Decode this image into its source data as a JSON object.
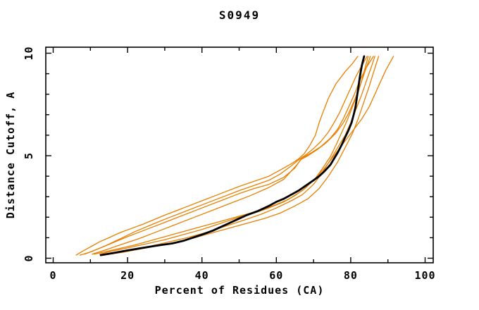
{
  "page": {
    "background_color": "#ffffff",
    "foreground_color": "#000000"
  },
  "chart_data": {
    "type": "line",
    "title": "S0949",
    "xlabel": "Percent of Residues (CA)",
    "ylabel": "Distance Cutoff, A",
    "xlim": [
      0,
      100
    ],
    "ylim": [
      0,
      10
    ],
    "grid": false,
    "legend": "none",
    "frame": "closed box with inward mirrored ticks",
    "x_major_ticks": [
      0,
      20,
      40,
      60,
      80,
      100
    ],
    "x_minor_ticks": [
      10,
      30,
      50,
      70,
      90
    ],
    "x_tick_labels": [
      "0",
      "20",
      "40",
      "60",
      "80",
      "100"
    ],
    "y_major_ticks": [
      0,
      5,
      10
    ],
    "y_minor_ticks": [
      1,
      2,
      3,
      4,
      6,
      7,
      8,
      9
    ],
    "y_tick_labels": [
      "0",
      "5",
      "10"
    ],
    "colors": {
      "model_lines": "#e87f00",
      "reference_line": "#000000"
    },
    "series": [
      {
        "name": "reference-thick-black",
        "color": "#000000",
        "width": 2.8,
        "points": [
          [
            12.8,
            0.15
          ],
          [
            16,
            0.25
          ],
          [
            20,
            0.38
          ],
          [
            24,
            0.5
          ],
          [
            28,
            0.62
          ],
          [
            32,
            0.72
          ],
          [
            35,
            0.85
          ],
          [
            37.5,
            1.0
          ],
          [
            40,
            1.15
          ],
          [
            43,
            1.35
          ],
          [
            46,
            1.6
          ],
          [
            49,
            1.85
          ],
          [
            52,
            2.1
          ],
          [
            55,
            2.3
          ],
          [
            58,
            2.55
          ],
          [
            60,
            2.75
          ],
          [
            62,
            2.9
          ],
          [
            64,
            3.1
          ],
          [
            66,
            3.3
          ],
          [
            68,
            3.55
          ],
          [
            70,
            3.8
          ],
          [
            71.5,
            4.0
          ],
          [
            73,
            4.25
          ],
          [
            74.5,
            4.55
          ],
          [
            75.5,
            4.85
          ],
          [
            76.5,
            5.15
          ],
          [
            77.5,
            5.5
          ],
          [
            78.5,
            5.9
          ],
          [
            79.3,
            6.2
          ],
          [
            80.2,
            6.6
          ],
          [
            80.8,
            7.0
          ],
          [
            81.3,
            7.4
          ],
          [
            81.7,
            7.9
          ],
          [
            82.1,
            8.4
          ],
          [
            82.5,
            8.9
          ],
          [
            83.0,
            9.4
          ],
          [
            83.6,
            9.85
          ]
        ]
      },
      {
        "name": "model-1-orange",
        "color": "#e87f00",
        "width": 1.3,
        "points": [
          [
            6.2,
            0.15
          ],
          [
            8,
            0.35
          ],
          [
            10,
            0.55
          ],
          [
            12.5,
            0.8
          ],
          [
            15,
            1.0
          ],
          [
            18,
            1.25
          ],
          [
            21,
            1.45
          ],
          [
            24,
            1.65
          ],
          [
            26,
            1.8
          ],
          [
            30,
            2.1
          ],
          [
            35,
            2.45
          ],
          [
            40,
            2.8
          ],
          [
            45,
            3.15
          ],
          [
            50,
            3.5
          ],
          [
            54,
            3.75
          ],
          [
            58,
            4.0
          ],
          [
            61,
            4.3
          ],
          [
            64,
            4.6
          ],
          [
            66,
            4.85
          ],
          [
            67.5,
            5.1
          ],
          [
            69,
            5.5
          ],
          [
            70.5,
            6.0
          ],
          [
            71.5,
            6.6
          ],
          [
            72.5,
            7.1
          ],
          [
            74,
            7.8
          ],
          [
            76,
            8.5
          ],
          [
            78.5,
            9.1
          ],
          [
            80.5,
            9.5
          ],
          [
            81.9,
            9.85
          ]
        ]
      },
      {
        "name": "model-2-orange",
        "color": "#e87f00",
        "width": 1.3,
        "points": [
          [
            7.2,
            0.15
          ],
          [
            10,
            0.3
          ],
          [
            14,
            0.6
          ],
          [
            18,
            0.95
          ],
          [
            22,
            1.3
          ],
          [
            26,
            1.6
          ],
          [
            30,
            1.9
          ],
          [
            35,
            2.25
          ],
          [
            40,
            2.6
          ],
          [
            45,
            2.95
          ],
          [
            50,
            3.3
          ],
          [
            54,
            3.55
          ],
          [
            58,
            3.8
          ],
          [
            61,
            4.1
          ],
          [
            64,
            4.5
          ],
          [
            66,
            4.8
          ],
          [
            68,
            5.05
          ],
          [
            70,
            5.35
          ],
          [
            72,
            5.7
          ],
          [
            74,
            6.15
          ],
          [
            75.5,
            6.6
          ],
          [
            77,
            7.1
          ],
          [
            78.5,
            7.7
          ],
          [
            80,
            8.3
          ],
          [
            81.5,
            8.9
          ],
          [
            83,
            9.4
          ],
          [
            84.4,
            9.85
          ]
        ]
      },
      {
        "name": "model-3-orange",
        "color": "#e87f00",
        "width": 1.3,
        "points": [
          [
            8.5,
            0.2
          ],
          [
            12,
            0.45
          ],
          [
            16,
            0.75
          ],
          [
            20,
            1.05
          ],
          [
            25,
            1.4
          ],
          [
            30,
            1.75
          ],
          [
            35,
            2.1
          ],
          [
            40,
            2.45
          ],
          [
            45,
            2.8
          ],
          [
            50,
            3.15
          ],
          [
            54,
            3.4
          ],
          [
            58,
            3.6
          ],
          [
            62,
            3.95
          ],
          [
            65,
            4.4
          ],
          [
            66.5,
            4.8
          ],
          [
            68.5,
            5.0
          ],
          [
            71,
            5.3
          ],
          [
            73.5,
            5.65
          ],
          [
            76,
            6.1
          ],
          [
            78,
            6.6
          ],
          [
            79.5,
            7.1
          ],
          [
            81,
            7.7
          ],
          [
            82.5,
            8.4
          ],
          [
            83.8,
            9.1
          ],
          [
            85.3,
            9.85
          ]
        ]
      },
      {
        "name": "model-4-orange",
        "color": "#e87f00",
        "width": 1.3,
        "points": [
          [
            10.5,
            0.2
          ],
          [
            14,
            0.4
          ],
          [
            18,
            0.65
          ],
          [
            23,
            0.95
          ],
          [
            28,
            1.3
          ],
          [
            33,
            1.65
          ],
          [
            38,
            2.0
          ],
          [
            43,
            2.35
          ],
          [
            48,
            2.7
          ],
          [
            53,
            3.05
          ],
          [
            58,
            3.45
          ],
          [
            62,
            3.85
          ],
          [
            65.5,
            4.55
          ],
          [
            67,
            4.9
          ],
          [
            69.5,
            5.15
          ],
          [
            72,
            5.45
          ],
          [
            74.5,
            5.85
          ],
          [
            76.5,
            6.3
          ],
          [
            78,
            6.8
          ],
          [
            79.5,
            7.4
          ],
          [
            81,
            8.0
          ],
          [
            82.5,
            8.7
          ],
          [
            84.2,
            9.3
          ],
          [
            86.1,
            9.85
          ]
        ]
      },
      {
        "name": "model-5-orange",
        "color": "#e87f00",
        "width": 1.3,
        "points": [
          [
            12.5,
            0.2
          ],
          [
            16,
            0.35
          ],
          [
            20,
            0.5
          ],
          [
            25,
            0.7
          ],
          [
            30,
            0.9
          ],
          [
            35,
            1.15
          ],
          [
            40,
            1.4
          ],
          [
            45,
            1.7
          ],
          [
            50,
            2.0
          ],
          [
            54,
            2.2
          ],
          [
            58,
            2.45
          ],
          [
            62,
            2.75
          ],
          [
            65,
            3.05
          ],
          [
            68,
            3.45
          ],
          [
            70.5,
            3.9
          ],
          [
            72.5,
            4.4
          ],
          [
            74.5,
            4.95
          ],
          [
            76,
            5.5
          ],
          [
            77.5,
            6.1
          ],
          [
            79,
            6.7
          ],
          [
            80.5,
            7.4
          ],
          [
            82,
            8.1
          ],
          [
            83.3,
            8.9
          ],
          [
            84.7,
            9.85
          ]
        ]
      },
      {
        "name": "model-6-orange",
        "color": "#e87f00",
        "width": 1.3,
        "points": [
          [
            13,
            0.15
          ],
          [
            18,
            0.3
          ],
          [
            24,
            0.5
          ],
          [
            30,
            0.75
          ],
          [
            36,
            1.0
          ],
          [
            42,
            1.3
          ],
          [
            47,
            1.6
          ],
          [
            52,
            1.9
          ],
          [
            56,
            2.15
          ],
          [
            60,
            2.45
          ],
          [
            64,
            2.8
          ],
          [
            67,
            3.1
          ],
          [
            70,
            3.6
          ],
          [
            72.5,
            4.2
          ],
          [
            74.5,
            4.8
          ],
          [
            76.5,
            5.4
          ],
          [
            78.5,
            6.0
          ],
          [
            80,
            6.6
          ],
          [
            81.5,
            7.3
          ],
          [
            83,
            8.0
          ],
          [
            84.5,
            8.8
          ],
          [
            85.5,
            9.3
          ],
          [
            86.5,
            9.85
          ]
        ]
      },
      {
        "name": "model-7-orange",
        "color": "#e87f00",
        "width": 1.3,
        "points": [
          [
            13.5,
            0.15
          ],
          [
            19,
            0.3
          ],
          [
            25,
            0.5
          ],
          [
            31,
            0.7
          ],
          [
            37,
            0.95
          ],
          [
            43,
            1.25
          ],
          [
            48,
            1.5
          ],
          [
            53,
            1.75
          ],
          [
            57,
            1.95
          ],
          [
            61,
            2.2
          ],
          [
            65,
            2.55
          ],
          [
            68.5,
            2.9
          ],
          [
            71.5,
            3.4
          ],
          [
            74,
            4.0
          ],
          [
            76.5,
            4.7
          ],
          [
            78.5,
            5.4
          ],
          [
            80.5,
            6.1
          ],
          [
            82,
            6.8
          ],
          [
            83.5,
            7.6
          ],
          [
            85,
            8.4
          ],
          [
            86.2,
            9.1
          ],
          [
            87.5,
            9.85
          ]
        ]
      },
      {
        "name": "model-8-orange",
        "color": "#e87f00",
        "width": 1.3,
        "points": [
          [
            11,
            0.2
          ],
          [
            16,
            0.4
          ],
          [
            22,
            0.65
          ],
          [
            28,
            0.95
          ],
          [
            34,
            1.25
          ],
          [
            40,
            1.55
          ],
          [
            46,
            1.85
          ],
          [
            51,
            2.1
          ],
          [
            55,
            2.3
          ],
          [
            59,
            2.55
          ],
          [
            63,
            2.85
          ],
          [
            67,
            3.3
          ],
          [
            70,
            3.8
          ],
          [
            73,
            4.4
          ],
          [
            75.5,
            5.0
          ],
          [
            78,
            5.6
          ],
          [
            80.5,
            6.2
          ],
          [
            83,
            6.8
          ],
          [
            85,
            7.4
          ],
          [
            86.5,
            8.0
          ],
          [
            88,
            8.6
          ],
          [
            89.5,
            9.2
          ],
          [
            91.5,
            9.85
          ]
        ]
      }
    ]
  }
}
